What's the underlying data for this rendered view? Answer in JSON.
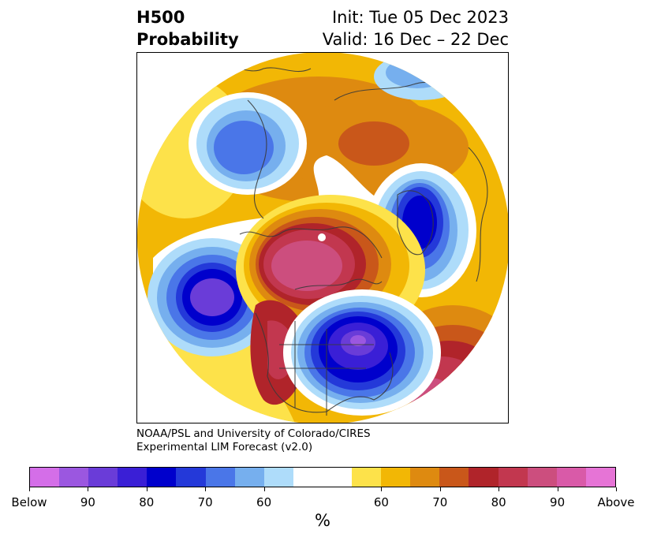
{
  "title": {
    "left_line1": "H500",
    "left_line2": "Probability",
    "right_line1": "Init: Tue 05 Dec 2023",
    "right_line2": "Valid: 16 Dec – 22 Dec"
  },
  "credit": {
    "line1": "NOAA/PSL and University of Colorado/CIRES",
    "line2": "Experimental LIM Forecast (v2.0)"
  },
  "colorbar": {
    "colors": [
      "#d46ee8",
      "#9b57e0",
      "#6a3cd8",
      "#3a1fd6",
      "#0000cc",
      "#2439d9",
      "#4a76e8",
      "#76afee",
      "#aedcfa",
      "#ffffff",
      "#ffffff",
      "#fde24a",
      "#f2b705",
      "#de8a10",
      "#c9571a",
      "#b0242a",
      "#c2374f",
      "#cc4e7e",
      "#d95aa8",
      "#e674d6"
    ],
    "ticks": [
      "Below",
      "90",
      "80",
      "70",
      "60",
      "60",
      "70",
      "80",
      "90",
      "Above"
    ],
    "unit": "%"
  }
}
